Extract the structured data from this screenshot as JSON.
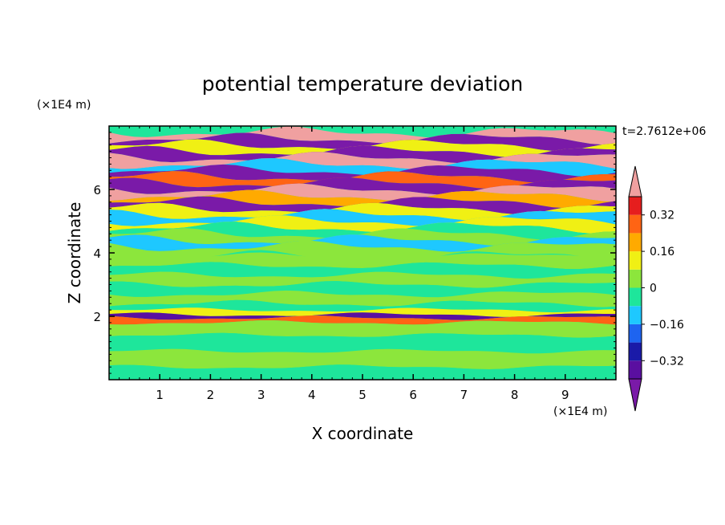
{
  "chart_data": {
    "type": "heatmap",
    "title": "potential temperature deviation",
    "xlabel": "X coordinate",
    "ylabel": "Z coordinate",
    "x_unit": "(×1E4 m)",
    "y_unit": "(×1E4 m)",
    "time_label": "t=2.7612e+06",
    "xlim": [
      0,
      10
    ],
    "ylim": [
      0,
      8
    ],
    "x_ticks": [
      1,
      2,
      3,
      4,
      5,
      6,
      7,
      8,
      9
    ],
    "x_tick_labels": [
      "1",
      "2",
      "3",
      "4",
      "5",
      "6",
      "7",
      "8",
      "9"
    ],
    "y_ticks": [
      2,
      4,
      6
    ],
    "y_tick_labels": [
      "2",
      "4",
      "6"
    ],
    "colorbar": {
      "levels": [
        -0.4,
        -0.32,
        -0.24,
        -0.16,
        -0.08,
        0,
        0.08,
        0.16,
        0.24,
        0.32,
        0.4
      ],
      "tick_values": [
        0.32,
        0.16,
        0,
        -0.16,
        -0.32
      ],
      "tick_labels": [
        "0.32",
        "0.16",
        "0",
        "−0.16",
        "−0.32"
      ],
      "colors": [
        "#5a0fa0",
        "#1a1aa8",
        "#1e64f0",
        "#1ec8ff",
        "#1ee69b",
        "#8ce63c",
        "#f0f014",
        "#ffaa00",
        "#ff6414",
        "#e61e1e"
      ],
      "under_color": "#7a1aa8",
      "over_color": "#f0a0a0"
    },
    "field_bands": [
      {
        "z": 7.8,
        "level": 10
      },
      {
        "z": 7.6,
        "level": -1
      },
      {
        "z": 7.4,
        "level": 6
      },
      {
        "z": 7.2,
        "level": -1
      },
      {
        "z": 7.0,
        "level": 10
      },
      {
        "z": 6.8,
        "level": 3
      },
      {
        "z": 6.6,
        "level": -1
      },
      {
        "z": 6.4,
        "level": 8
      },
      {
        "z": 6.2,
        "level": -1
      },
      {
        "z": 6.0,
        "level": 10
      },
      {
        "z": 5.8,
        "level": 7
      },
      {
        "z": 5.6,
        "level": -1
      },
      {
        "z": 5.4,
        "level": 6
      },
      {
        "z": 5.2,
        "level": 3
      },
      {
        "z": 5.0,
        "level": 6
      },
      {
        "z": 4.8,
        "level": 4
      },
      {
        "z": 4.6,
        "level": 5
      },
      {
        "z": 4.4,
        "level": 3
      },
      {
        "z": 4.2,
        "level": 5
      },
      {
        "z": 3.9,
        "level": 5
      },
      {
        "z": 3.6,
        "level": 4
      },
      {
        "z": 3.3,
        "level": 5
      },
      {
        "z": 3.0,
        "level": 4
      },
      {
        "z": 2.7,
        "level": 5
      },
      {
        "z": 2.4,
        "level": 4
      },
      {
        "z": 2.2,
        "level": 6
      },
      {
        "z": 2.05,
        "level": 0
      },
      {
        "z": 1.95,
        "level": 8
      },
      {
        "z": 1.8,
        "level": 5
      },
      {
        "z": 1.4,
        "level": 4
      },
      {
        "z": 0.9,
        "level": 5
      },
      {
        "z": 0.4,
        "level": 4
      },
      {
        "z": 0.0,
        "level": 4
      }
    ]
  }
}
